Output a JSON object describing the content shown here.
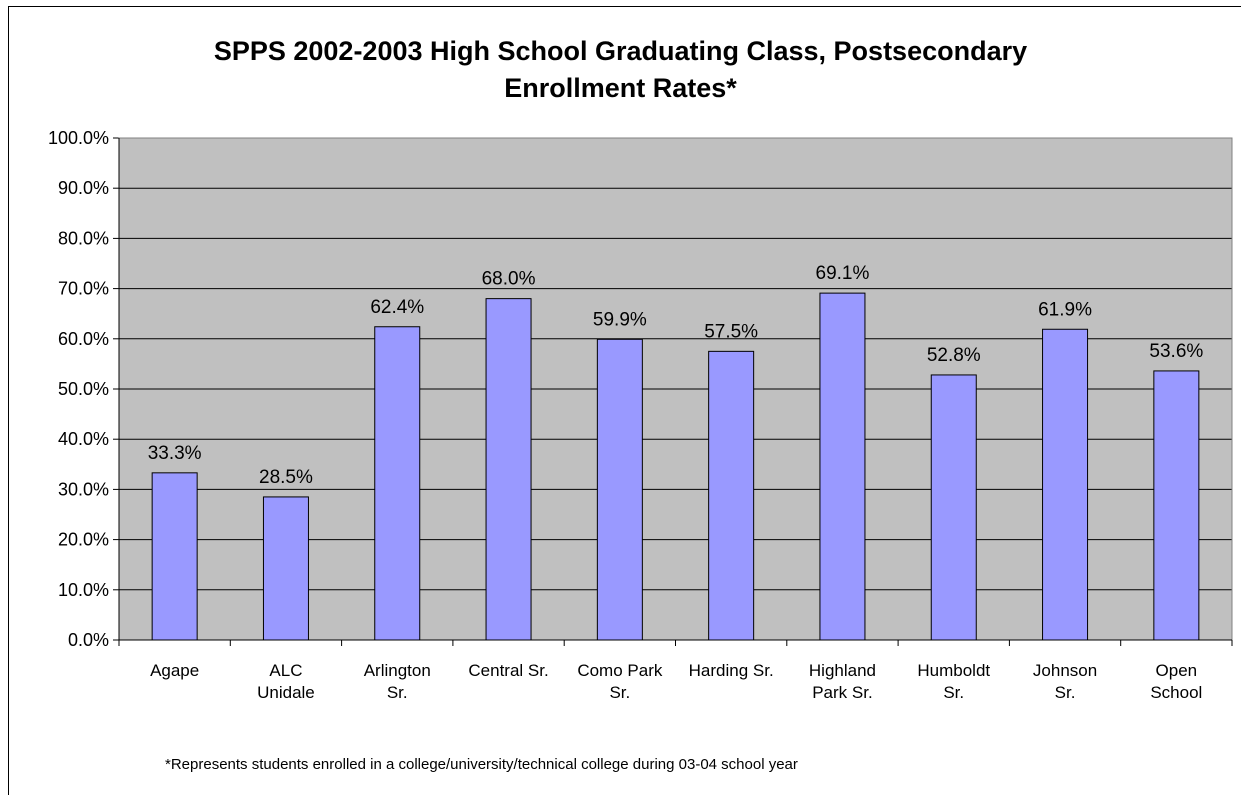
{
  "chart_data": {
    "type": "bar",
    "title_lines": [
      "SPPS 2002-2003 High School Graduating Class, Postsecondary",
      "Enrollment Rates*"
    ],
    "categories": [
      [
        "Agape"
      ],
      [
        "ALC",
        "Unidale"
      ],
      [
        "Arlington",
        "Sr."
      ],
      [
        "Central Sr."
      ],
      [
        "Como Park",
        "Sr."
      ],
      [
        "Harding Sr."
      ],
      [
        "Highland",
        "Park Sr."
      ],
      [
        "Humboldt",
        "Sr."
      ],
      [
        "Johnson",
        "Sr."
      ],
      [
        "Open",
        "School"
      ]
    ],
    "values": [
      33.3,
      28.5,
      62.4,
      68.0,
      59.9,
      57.5,
      69.1,
      52.8,
      61.9,
      53.6
    ],
    "data_labels": [
      "33.3%",
      "28.5%",
      "62.4%",
      "68.0%",
      "59.9%",
      "57.5%",
      "69.1%",
      "52.8%",
      "61.9%",
      "53.6%"
    ],
    "y_ticks": [
      "0.0%",
      "10.0%",
      "20.0%",
      "30.0%",
      "40.0%",
      "50.0%",
      "60.0%",
      "70.0%",
      "80.0%",
      "90.0%",
      "100.0%"
    ],
    "ylim": [
      0,
      100
    ],
    "grid": true,
    "legend": "none",
    "colors": {
      "bar_fill": "#9999ff",
      "plot_bg": "#c0c0c0",
      "bar_stroke": "#000000",
      "grid": "#000000"
    },
    "footnote": "*Represents students enrolled in a college/university/technical college during 03-04 school year"
  }
}
